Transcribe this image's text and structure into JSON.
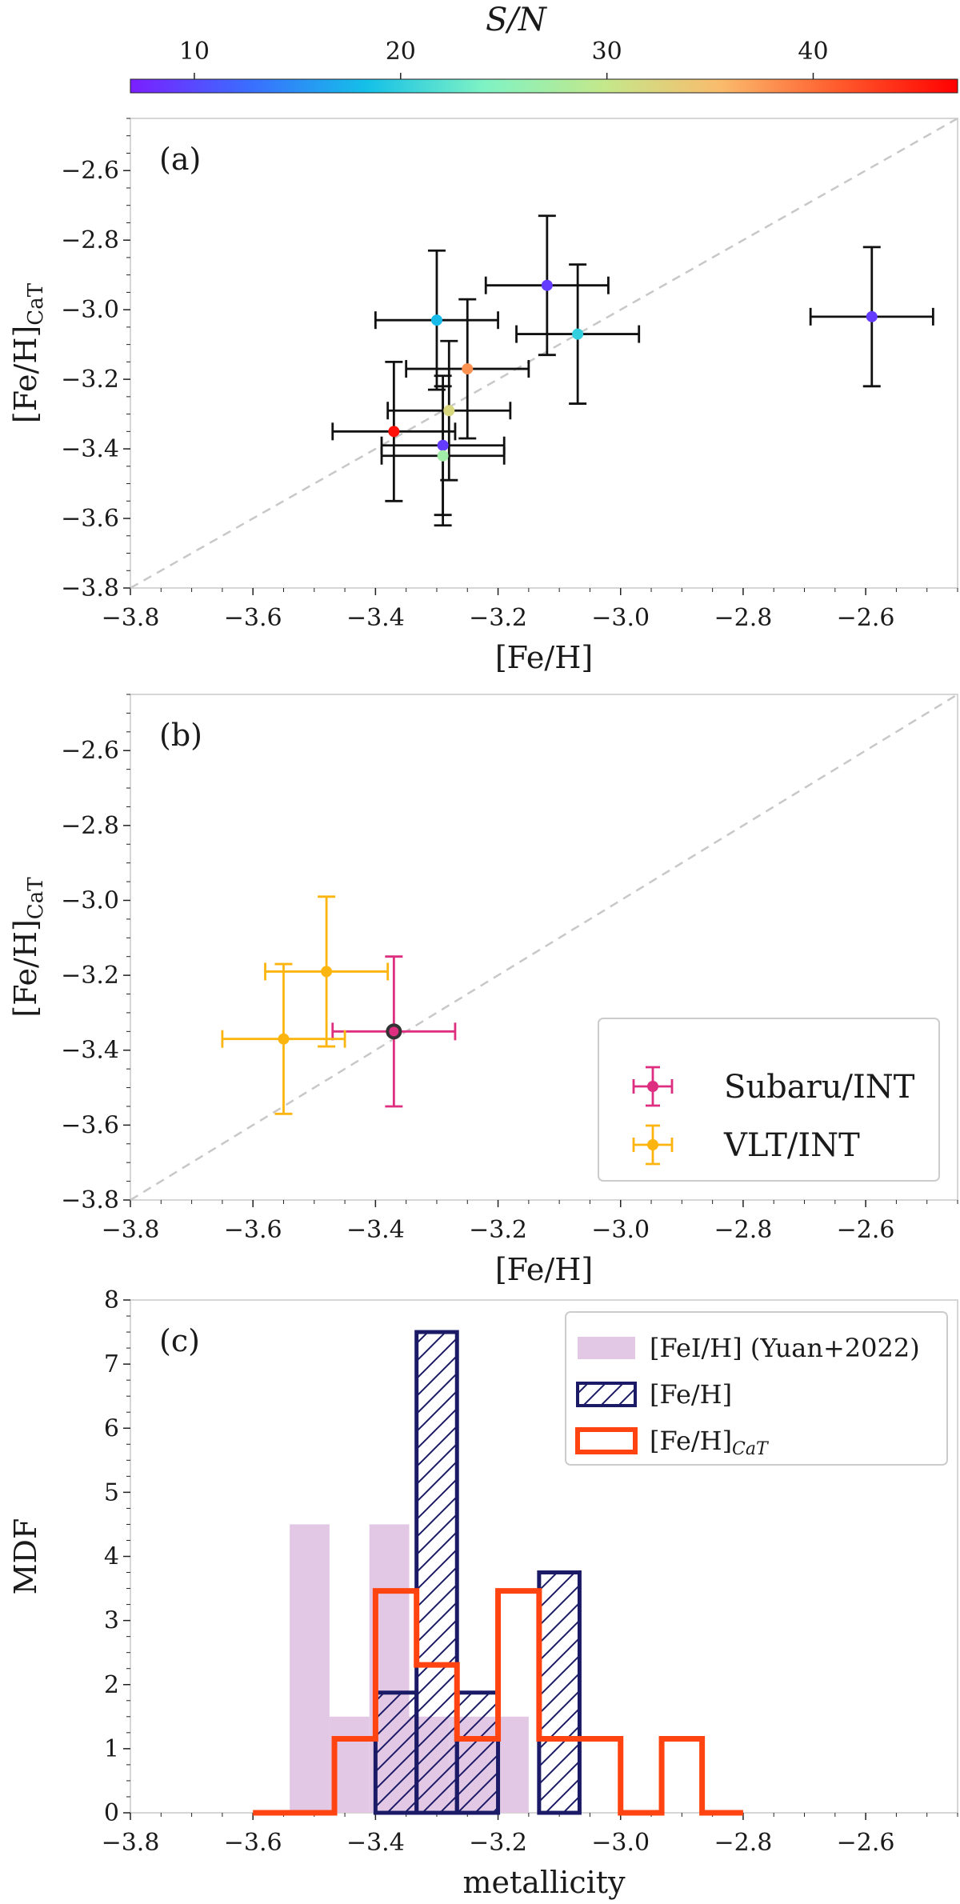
{
  "colorbar": {
    "label": "S/N",
    "range": [
      6.9,
      47.0
    ],
    "ticks": [
      10,
      20,
      30,
      40
    ],
    "tick_labels": [
      "10",
      "20",
      "30",
      "40"
    ],
    "colors": [
      "#7b1fff",
      "#3b6dff",
      "#14c0e8",
      "#7ff3c4",
      "#c3e88b",
      "#fabb6c",
      "#ff5a2c",
      "#ff0000"
    ]
  },
  "chart_data": [
    {
      "id": "a",
      "type": "scatter",
      "panel_label": "(a)",
      "xlabel": "[Fe/H]",
      "ylabel": "[Fe/H]",
      "ylabel_sub": "CaT",
      "xlim": [
        -3.8,
        -2.45
      ],
      "ylim": [
        -3.8,
        -2.45
      ],
      "xticks": [
        -3.8,
        -3.6,
        -3.4,
        -3.2,
        -3.0,
        -2.8,
        -2.6
      ],
      "xtick_labels": [
        "−3.8",
        "−3.6",
        "−3.4",
        "−3.2",
        "−3.0",
        "−2.8",
        "−2.6"
      ],
      "yticks": [
        -3.8,
        -3.6,
        -3.4,
        -3.2,
        -3.0,
        -2.8,
        -2.6
      ],
      "ytick_labels": [
        "−3.8",
        "−3.6",
        "−3.4",
        "−3.2",
        "−3.0",
        "−2.8",
        "−2.6"
      ],
      "reference_line": "one-to-one",
      "points": [
        {
          "x": -3.12,
          "y": -2.93,
          "xerr": 0.1,
          "yerr": 0.2,
          "sn": 9
        },
        {
          "x": -3.3,
          "y": -3.03,
          "xerr": 0.1,
          "yerr": 0.2,
          "sn": 18
        },
        {
          "x": -3.07,
          "y": -3.07,
          "xerr": 0.1,
          "yerr": 0.2,
          "sn": 20
        },
        {
          "x": -2.59,
          "y": -3.02,
          "xerr": 0.1,
          "yerr": 0.2,
          "sn": 9
        },
        {
          "x": -3.25,
          "y": -3.17,
          "xerr": 0.1,
          "yerr": 0.2,
          "sn": 38
        },
        {
          "x": -3.28,
          "y": -3.29,
          "xerr": 0.1,
          "yerr": 0.2,
          "sn": 32
        },
        {
          "x": -3.37,
          "y": -3.35,
          "xerr": 0.1,
          "yerr": 0.2,
          "sn": 46
        },
        {
          "x": -3.29,
          "y": -3.39,
          "xerr": 0.1,
          "yerr": 0.2,
          "sn": 9
        },
        {
          "x": -3.29,
          "y": -3.42,
          "xerr": 0.1,
          "yerr": 0.2,
          "sn": 27
        }
      ]
    },
    {
      "id": "b",
      "type": "scatter",
      "panel_label": "(b)",
      "xlabel": "[Fe/H]",
      "ylabel": "[Fe/H]",
      "ylabel_sub": "CaT",
      "xlim": [
        -3.8,
        -2.45
      ],
      "ylim": [
        -3.8,
        -2.45
      ],
      "xticks": [
        -3.8,
        -3.6,
        -3.4,
        -3.2,
        -3.0,
        -2.8,
        -2.6
      ],
      "xtick_labels": [
        "−3.8",
        "−3.6",
        "−3.4",
        "−3.2",
        "−3.0",
        "−2.8",
        "−2.6"
      ],
      "yticks": [
        -3.8,
        -3.6,
        -3.4,
        -3.2,
        -3.0,
        -2.8,
        -2.6
      ],
      "ytick_labels": [
        "−3.8",
        "−3.6",
        "−3.4",
        "−3.2",
        "−3.0",
        "−2.8",
        "−2.6"
      ],
      "reference_line": "one-to-one",
      "legend_position": "lower-right",
      "series": [
        {
          "name": "Subaru/INT",
          "color": "#dd2e7f",
          "points": [
            {
              "x": -3.37,
              "y": -3.35,
              "xerr": 0.1,
              "yerr": 0.2
            }
          ]
        },
        {
          "name": "VLT/INT",
          "color": "#fcb50f",
          "points": [
            {
              "x": -3.48,
              "y": -3.19,
              "xerr": 0.1,
              "yerr": 0.2
            },
            {
              "x": -3.55,
              "y": -3.37,
              "xerr": 0.1,
              "yerr": 0.2
            }
          ]
        }
      ]
    },
    {
      "id": "c",
      "type": "histogram",
      "panel_label": "(c)",
      "xlabel": "metallicity",
      "ylabel": "MDF",
      "xlim": [
        -3.8,
        -2.45
      ],
      "ylim": [
        0,
        8
      ],
      "xticks": [
        -3.8,
        -3.6,
        -3.4,
        -3.2,
        -3.0,
        -2.8,
        -2.6
      ],
      "xtick_labels": [
        "−3.8",
        "−3.6",
        "−3.4",
        "−3.2",
        "−3.0",
        "−2.8",
        "−2.6"
      ],
      "yticks": [
        0,
        1,
        2,
        3,
        4,
        5,
        6,
        7,
        8
      ],
      "ytick_labels": [
        "0",
        "1",
        "2",
        "3",
        "4",
        "5",
        "6",
        "7",
        "8"
      ],
      "legend_position": "top-right",
      "series": [
        {
          "name": "[FeI/H] (Yuan+2022)",
          "name_main": "[FeI/H] (Yuan+2022)",
          "style": "filled",
          "color": "#e2c8e4",
          "edges": [
            -3.54,
            -3.475,
            -3.41,
            -3.345,
            -3.28,
            -3.215,
            -3.15
          ],
          "values": [
            4.5,
            1.5,
            4.5,
            1.5,
            1.5,
            1.5
          ]
        },
        {
          "name": "[Fe/H]",
          "name_main": "[Fe/H]",
          "style": "hatched",
          "color": "#1a1a66",
          "edges": [
            -3.4,
            -3.333,
            -3.267,
            -3.2,
            -3.133,
            -3.067
          ],
          "values": [
            1.875,
            7.5,
            1.875,
            0,
            3.75
          ]
        },
        {
          "name": "[Fe/H]CaT",
          "name_main": "[Fe/H]",
          "name_sub": "CaT",
          "style": "step",
          "color": "#ff4411",
          "edges": [
            -3.6,
            -3.5,
            -3.4,
            -3.333,
            -3.3,
            -3.2,
            -3.133,
            -3.1,
            -3.0,
            -2.933,
            -2.9,
            -2.8
          ],
          "values": [
            0,
            1.154,
            3.462,
            2.308,
            1.154,
            3.462,
            1.154,
            1.154,
            0,
            1.154,
            0
          ],
          "step_edges": [
            -3.6,
            -3.467,
            -3.4,
            -3.333,
            -3.267,
            -3.2,
            -3.133,
            -3.067,
            -3.0,
            -2.933,
            -2.867,
            -2.8
          ],
          "step_values": [
            0,
            1.154,
            3.462,
            2.308,
            1.154,
            3.462,
            1.154,
            1.154,
            0,
            1.154,
            0
          ]
        }
      ]
    }
  ]
}
